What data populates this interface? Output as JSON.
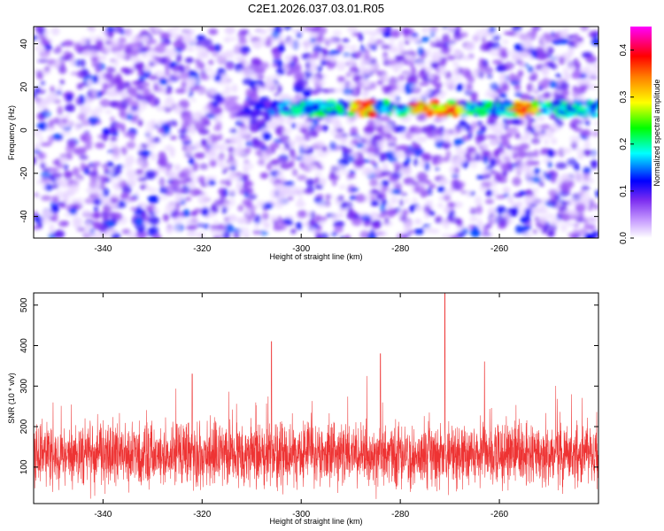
{
  "title": "C2E1.2026.037.03.01.R05",
  "colors": {
    "series_line": "#ee3333",
    "colormap": [
      "#ffffff",
      "#8a2be2",
      "#0000ff",
      "#00ffff",
      "#00ff00",
      "#ffff00",
      "#ff8000",
      "#ff0000",
      "#ff00ff"
    ]
  },
  "chart_data": [
    {
      "type": "heatmap",
      "title": "C2E1.2026.037.03.01.R05",
      "xlabel": "Height of straight line (km)",
      "ylabel": "Frequency (Hz)",
      "xlim": [
        -354,
        -240
      ],
      "ylim": [
        -50,
        48
      ],
      "xticks": [
        -340,
        -320,
        -300,
        -280,
        -260
      ],
      "yticks": [
        -40,
        -20,
        0,
        20,
        40
      ],
      "colorbar": {
        "label": "Normalized spectral amplitude",
        "range": [
          0.0,
          0.45
        ],
        "ticks": [
          0.0,
          0.1,
          0.2,
          0.3,
          0.4
        ]
      },
      "features": [
        {
          "kind": "horizontal band",
          "frequency_hz": 10,
          "x_range": [
            -315,
            -240
          ],
          "peak_amplitude": 0.4,
          "peak_x": [
            -288,
            -275,
            -270,
            -255
          ]
        }
      ],
      "background_amplitude": [
        0.0,
        0.1
      ],
      "grid": false
    },
    {
      "type": "line",
      "xlabel": "Height of straight line (km)",
      "ylabel": "SNR (10 * v/v)",
      "xlim": [
        -354,
        -240
      ],
      "ylim": [
        10,
        530
      ],
      "xticks": [
        -340,
        -320,
        -300,
        -280,
        -260
      ],
      "yticks": [
        100,
        200,
        300,
        400,
        500
      ],
      "series": [
        {
          "color": "#ee3333",
          "typical_range": [
            40,
            260
          ],
          "mean": 130,
          "notable_peaks": [
            {
              "x": -271,
              "y": 530
            },
            {
              "x": -306,
              "y": 410
            },
            {
              "x": -284,
              "y": 380
            },
            {
              "x": -263,
              "y": 360
            },
            {
              "x": -322,
              "y": 330
            }
          ]
        }
      ],
      "grid": false
    }
  ]
}
